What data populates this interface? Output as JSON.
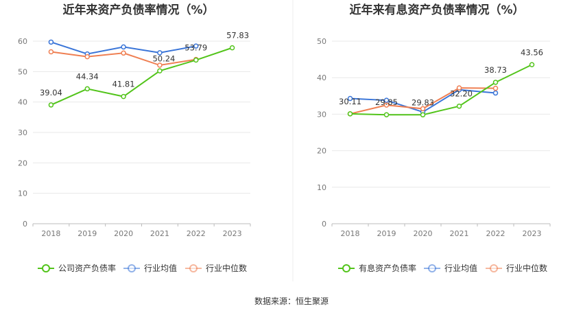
{
  "chart_data": [
    {
      "type": "line",
      "title": "近年来资产负债率情况（%）",
      "categories": [
        "2018",
        "2019",
        "2020",
        "2021",
        "2022",
        "2023"
      ],
      "ylim": [
        0,
        60
      ],
      "yticks": [
        0,
        10,
        20,
        30,
        40,
        50,
        60
      ],
      "grid": true,
      "legend_position": "bottom",
      "series": [
        {
          "name": "公司资产负债率",
          "color": "#52c41a",
          "values": [
            39.04,
            44.34,
            41.81,
            50.24,
            53.79,
            57.83
          ],
          "labels": [
            "39.04",
            "44.34",
            "41.81",
            "50.24",
            "53.79",
            "57.83"
          ]
        },
        {
          "name": "行业均值",
          "color": "#3a75d8",
          "values": [
            59.7,
            55.8,
            58.1,
            56.2,
            58.4,
            null
          ]
        },
        {
          "name": "行业中位数",
          "color": "#ef7f52",
          "values": [
            56.5,
            54.9,
            56.1,
            52.1,
            54.0,
            null
          ]
        }
      ]
    },
    {
      "type": "line",
      "title": "近年来有息资产负债率情况（%）",
      "categories": [
        "2018",
        "2019",
        "2020",
        "2021",
        "2022",
        "2023"
      ],
      "ylim": [
        0,
        50
      ],
      "yticks": [
        0,
        10,
        20,
        30,
        40,
        50
      ],
      "grid": true,
      "legend_position": "bottom",
      "series": [
        {
          "name": "有息资产负债率",
          "color": "#52c41a",
          "values": [
            30.11,
            29.85,
            29.83,
            32.2,
            38.73,
            43.56
          ],
          "labels": [
            "30.11",
            "29.85",
            "29.83",
            "32.20",
            "38.73",
            "43.56"
          ]
        },
        {
          "name": "行业均值",
          "color": "#3a75d8",
          "values": [
            34.3,
            33.8,
            30.6,
            36.7,
            35.8,
            null
          ]
        },
        {
          "name": "行业中位数",
          "color": "#ef7f52",
          "values": [
            30.1,
            32.5,
            31.5,
            37.2,
            37.1,
            null
          ]
        }
      ]
    }
  ],
  "source_text": "数据来源：恒生聚源"
}
